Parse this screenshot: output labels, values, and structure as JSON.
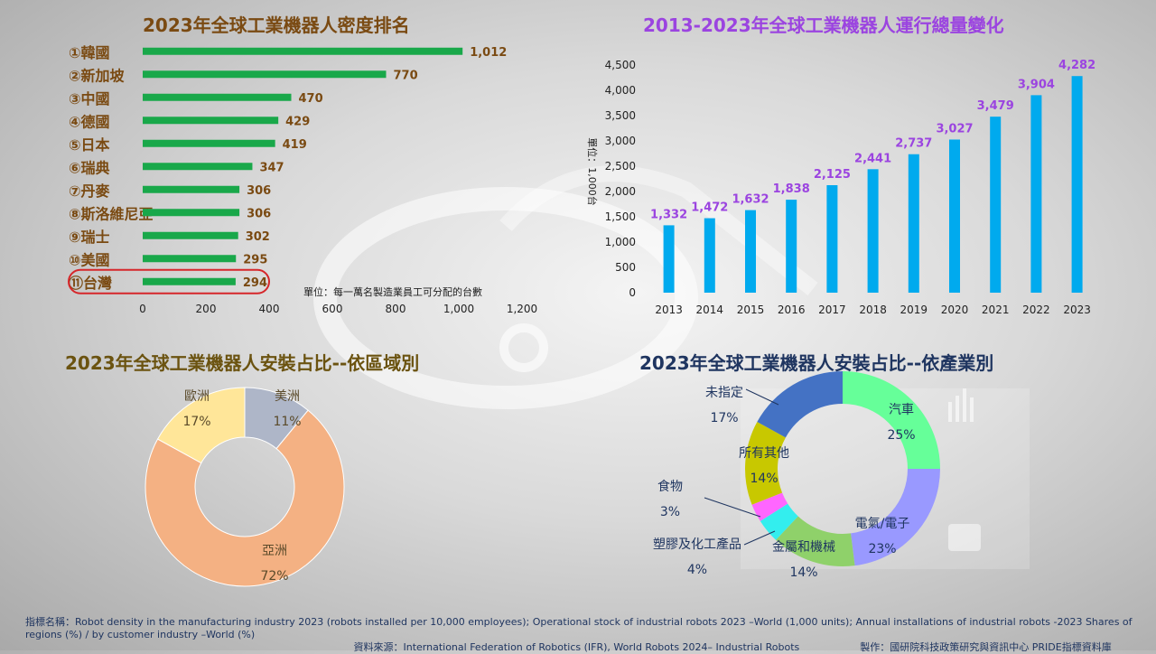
{
  "density": {
    "title": "2023年全球工業機器人密度排名",
    "unit_note": "單位：每一萬名製造業員工可分配的台數",
    "ranks": [
      "①",
      "②",
      "③",
      "④",
      "⑤",
      "⑥",
      "⑦",
      "⑧",
      "⑨",
      "⑩",
      "⑪"
    ],
    "highlight_index": 10,
    "bar_color": "#19a84a",
    "highlight_color": "#d6262a"
  },
  "operational": {
    "title": "2013-2023年全球工業機器人運行總量變化",
    "ylabel": "單位：1,000台",
    "bar_color": "#00aaee",
    "label_color": "#9b44e0"
  },
  "region": {
    "title": "2023年全球工業機器人安裝占比--依區域別"
  },
  "industry": {
    "title": "2023年全球工業機器人安裝占比--依產業別"
  },
  "chart_data": [
    {
      "type": "bar",
      "orientation": "horizontal",
      "title": "2023年全球工業機器人密度排名",
      "categories": [
        "韓國",
        "新加坡",
        "中國",
        "德國",
        "日本",
        "瑞典",
        "丹麥",
        "斯洛維尼亞",
        "瑞士",
        "美國",
        "台灣"
      ],
      "values": [
        1012,
        770,
        470,
        429,
        419,
        347,
        306,
        306,
        302,
        295,
        294
      ],
      "value_labels": [
        "1,012",
        "770",
        "470",
        "429",
        "419",
        "347",
        "306",
        "306",
        "302",
        "295",
        "294"
      ],
      "xlim": [
        0,
        1200
      ],
      "xticks": [
        0,
        200,
        400,
        600,
        800,
        1000,
        1200
      ],
      "xtick_labels": [
        "0",
        "200",
        "400",
        "600",
        "800",
        "1,000",
        "1,200"
      ],
      "grid": false
    },
    {
      "type": "bar",
      "title": "2013-2023年全球工業機器人運行總量變化",
      "ylabel": "單位：1,000台",
      "categories": [
        "2013",
        "2014",
        "2015",
        "2016",
        "2017",
        "2018",
        "2019",
        "2020",
        "2021",
        "2022",
        "2023"
      ],
      "values": [
        1332,
        1472,
        1632,
        1838,
        2125,
        2441,
        2737,
        3027,
        3479,
        3904,
        4282
      ],
      "value_labels": [
        "1,332",
        "1,472",
        "1,632",
        "1,838",
        "2,125",
        "2,441",
        "2,737",
        "3,027",
        "3,479",
        "3,904",
        "4,282"
      ],
      "ylim": [
        0,
        4500
      ],
      "yticks": [
        0,
        500,
        1000,
        1500,
        2000,
        2500,
        3000,
        3500,
        4000,
        4500
      ],
      "ytick_labels": [
        "0",
        "500",
        "1,000",
        "1,500",
        "2,000",
        "2,500",
        "3,000",
        "3,500",
        "4,000",
        "4,500"
      ],
      "grid": false
    },
    {
      "type": "pie",
      "donut": true,
      "title": "2023年全球工業機器人安裝占比--依區域別",
      "slices": [
        {
          "label": "美洲",
          "value": 11,
          "text": "11%",
          "color": "#aeb6c8"
        },
        {
          "label": "亞洲",
          "value": 72,
          "text": "72%",
          "color": "#f4b183"
        },
        {
          "label": "歐洲",
          "value": 17,
          "text": "17%",
          "color": "#ffe699"
        }
      ]
    },
    {
      "type": "pie",
      "donut": true,
      "title": "2023年全球工業機器人安裝占比--依產業別",
      "slices": [
        {
          "label": "汽車",
          "value": 25,
          "text": "25%",
          "color": "#66ff99"
        },
        {
          "label": "電氣/電子",
          "value": 23,
          "text": "23%",
          "color": "#9999ff"
        },
        {
          "label": "金屬和機械",
          "value": 14,
          "text": "14%",
          "color": "#8fd16a"
        },
        {
          "label": "塑膠及化工產品",
          "value": 4,
          "text": "4%",
          "color": "#33eeee"
        },
        {
          "label": "食物",
          "value": 3,
          "text": "3%",
          "color": "#ff66ff"
        },
        {
          "label": "所有其他",
          "value": 14,
          "text": "14%",
          "color": "#c8c800"
        },
        {
          "label": "未指定",
          "value": 17,
          "text": "17%",
          "color": "#4472c4"
        }
      ]
    }
  ],
  "footer": {
    "metrics": "指標名稱：Robot density in the manufacturing industry 2023 (robots installed per 10,000 employees); Operational stock of industrial robots 2023 –World (1,000 units); Annual installations of industrial robots -2023 Shares of regions (%) / by customer industry –World (%)",
    "source": "資料來源：International Federation of Robotics (IFR), World Robots 2024– Industrial Robots",
    "producer": "製作：國研院科技政策研究與資訊中心 PRIDE指標資料庫"
  }
}
